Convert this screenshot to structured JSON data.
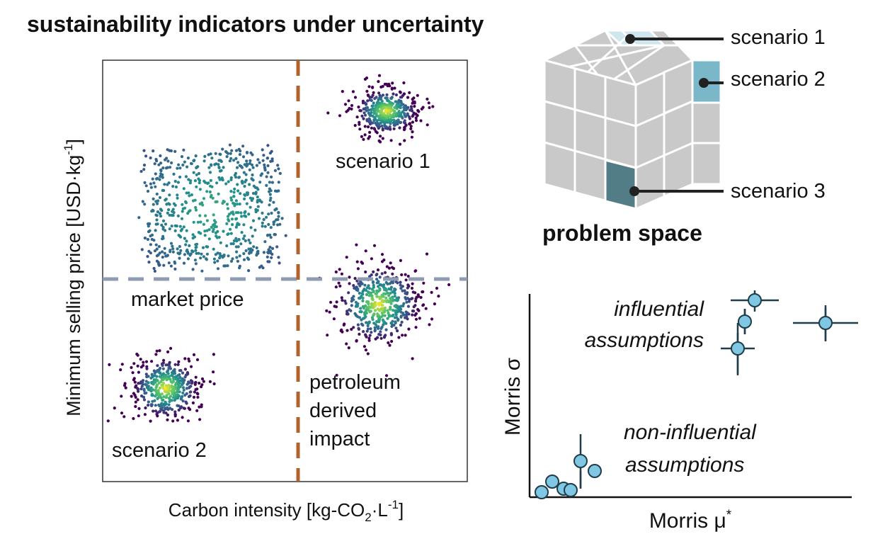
{
  "title": "sustainability indicators under uncertainty",
  "left_panel": {
    "x_axis_label": "Carbon intensity [kg-CO",
    "x_axis_sub": "2",
    "x_axis_mid": "·L",
    "x_axis_sup": "-1",
    "x_axis_end": "]",
    "y_axis_label": "Minimum selling price [USD·kg",
    "y_axis_sup": "-1",
    "y_axis_end": "]",
    "market_price": "market price",
    "petroleum_line1": "petroleum",
    "petroleum_line2": "derived",
    "petroleum_line3": "impact",
    "scenario_1": "scenario 1",
    "scenario_2": "scenario 2",
    "colors": {
      "vertical_line": "#b4622d",
      "horizontal_line": "#8f9bb0"
    }
  },
  "cube": {
    "title": "problem space",
    "scenario_1": "scenario 1",
    "scenario_2": "scenario 2",
    "scenario_3": "scenario 3",
    "colors": {
      "scenario_1": "#cfe6ee",
      "scenario_2": "#79b7c9",
      "scenario_3": "#527d86",
      "cell": "#c9c9c9"
    }
  },
  "morris": {
    "x_label": "Morris μ",
    "x_sup": "*",
    "y_label": "Morris σ",
    "influential_line1": "influential",
    "influential_line2": "assumptions",
    "noninfluential_line1": "non-influential",
    "noninfluential_line2": "assumptions",
    "marker_color": "#7fc7e3"
  }
}
